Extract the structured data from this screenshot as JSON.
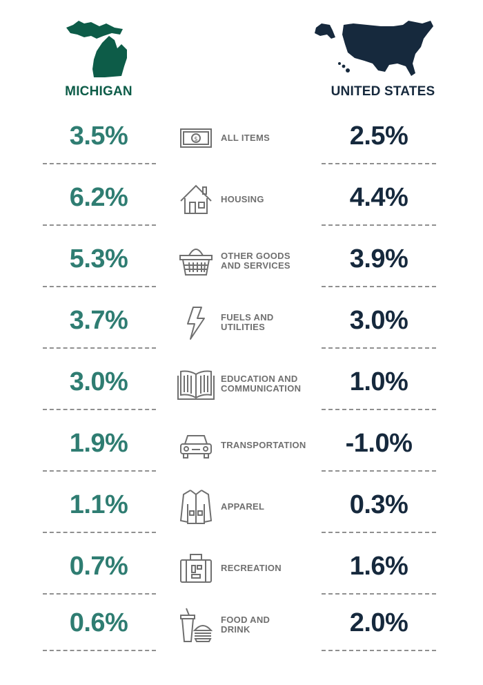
{
  "headers": {
    "michigan": "MICHIGAN",
    "united_states": "UNITED STATES"
  },
  "colors": {
    "michigan_accent": "#0d5c48",
    "michigan_value": "#2f7d72",
    "us_accent": "#16293d",
    "label_gray": "#6f6f6f"
  },
  "rows": [
    {
      "icon": "money-bill-icon",
      "label": "ALL ITEMS",
      "michigan": "3.5%",
      "us": "2.5%"
    },
    {
      "icon": "house-icon",
      "label": "HOUSING",
      "michigan": "6.2%",
      "us": "4.4%"
    },
    {
      "icon": "basket-icon",
      "label": "OTHER GOODS\nAND SERVICES",
      "michigan": "5.3%",
      "us": "3.9%"
    },
    {
      "icon": "lightning-icon",
      "label": "FUELS AND\nUTILITIES",
      "michigan": "3.7%",
      "us": "3.0%"
    },
    {
      "icon": "book-icon",
      "label": "EDUCATION AND\nCOMMUNICATION",
      "michigan": "3.0%",
      "us": "1.0%"
    },
    {
      "icon": "car-icon",
      "label": "TRANSPORTATION",
      "michigan": "1.9%",
      "us": "-1.0%"
    },
    {
      "icon": "jacket-icon",
      "label": "APPAREL",
      "michigan": "1.1%",
      "us": "0.3%"
    },
    {
      "icon": "suitcase-icon",
      "label": "RECREATION",
      "michigan": "0.7%",
      "us": "1.6%"
    },
    {
      "icon": "drink-burger-icon",
      "label": "FOOD AND\nDRINK",
      "michigan": "0.6%",
      "us": "2.0%"
    }
  ]
}
